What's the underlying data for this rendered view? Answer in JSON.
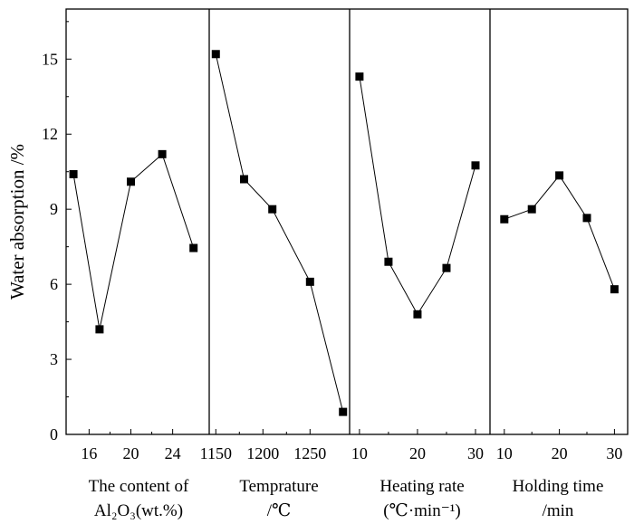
{
  "chart_data": {
    "type": "scatter",
    "title": "",
    "ylabel": "Water absorption /%",
    "ylim": [
      0,
      17
    ],
    "yticks": [
      0,
      3,
      6,
      9,
      12,
      15
    ],
    "grid": false,
    "panels": [
      {
        "id": "al2o3",
        "xlim": [
          13.8,
          27.5
        ],
        "xticks": [
          16,
          20,
          24
        ],
        "xtick_labels": [
          "16",
          "20",
          "24"
        ],
        "xlabel_line1": "The content of",
        "xlabel_line2": "Al₂O₃(wt.%)",
        "series": [
          {
            "name": "Al2O3 content",
            "x": [
              14.5,
              17,
              20,
              23,
              26
            ],
            "y": [
              10.4,
              4.2,
              10.1,
              11.2,
              7.45
            ]
          }
        ]
      },
      {
        "id": "temperature",
        "xlim": [
          1143,
          1292
        ],
        "xticks": [
          1150,
          1200,
          1250
        ],
        "xtick_labels": [
          "1150",
          "1200",
          "1250"
        ],
        "xlabel_line1": "Temprature",
        "xlabel_line2": "/℃",
        "series": [
          {
            "name": "Temperature",
            "x": [
              1150,
              1180,
              1210,
              1250,
              1285
            ],
            "y": [
              15.2,
              10.2,
              9.0,
              6.1,
              0.9
            ]
          }
        ]
      },
      {
        "id": "heating_rate",
        "xlim": [
          8.3,
          32.5
        ],
        "xticks": [
          10,
          20,
          30
        ],
        "xtick_labels": [
          "10",
          "20",
          "30"
        ],
        "xlabel_line1": "Heating rate",
        "xlabel_line2": "(℃·min⁻¹)",
        "series": [
          {
            "name": "Heating rate",
            "x": [
              10,
              15,
              20,
              25,
              30
            ],
            "y": [
              14.3,
              6.9,
              4.8,
              6.65,
              10.75
            ]
          }
        ]
      },
      {
        "id": "holding_time",
        "xlim": [
          7.4,
          32.4
        ],
        "xticks": [
          10,
          20,
          30
        ],
        "xtick_labels": [
          "10",
          "20",
          "30"
        ],
        "xlabel_line1": "Holding time",
        "xlabel_line2": "/min",
        "series": [
          {
            "name": "Holding time",
            "x": [
              10,
              15,
              20,
              25,
              30
            ],
            "y": [
              8.6,
              9.0,
              10.35,
              8.65,
              5.8
            ]
          }
        ]
      }
    ]
  }
}
